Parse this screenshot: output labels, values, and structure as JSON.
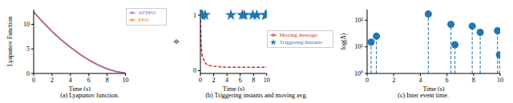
{
  "chart_data": [
    {
      "type": "line",
      "title": "(a) Lyapunov function.",
      "x_label": "Time (s)",
      "y_label": "Lyapunov Function",
      "xlim": [
        0,
        10
      ],
      "xticks": [
        0,
        2,
        4,
        6,
        8,
        10
      ],
      "ylim": [
        0,
        13
      ],
      "yticks": [
        0,
        5,
        10
      ],
      "grid": false,
      "legend": "upper right",
      "series": [
        {
          "name": "PPO",
          "type": "line",
          "color": "#ff7f0e",
          "line_style": "solid",
          "x": [
            0,
            1,
            2,
            3,
            4,
            5,
            6,
            7,
            8,
            9,
            10
          ],
          "values": [
            12.5,
            10.5,
            8.6,
            6.9,
            5.4,
            4.0,
            2.8,
            1.8,
            1.0,
            0.4,
            0.1
          ]
        },
        {
          "name": "ATPPO",
          "type": "line",
          "color": "#9467bd",
          "line_style": "solid",
          "x": [
            0,
            1,
            2,
            3,
            4,
            5,
            6,
            7,
            8,
            9,
            10
          ],
          "values": [
            12.5,
            10.4,
            8.5,
            6.8,
            5.3,
            3.9,
            2.7,
            1.7,
            0.9,
            0.35,
            0.1
          ]
        }
      ]
    },
    {
      "type": "scatter",
      "title": "(b) Triggering instants and moving avg.",
      "x_label": "Time (s)",
      "y_label": "Φ",
      "xlim": [
        0,
        10
      ],
      "xticks": [
        0,
        2,
        4,
        6,
        8,
        10
      ],
      "ylim": [
        -0.05,
        1.1
      ],
      "yticks": [
        0,
        1
      ],
      "grid": false,
      "legend": "right",
      "series": [
        {
          "name": "Triggering Instants",
          "type": "scatter",
          "color": "#1f77b4",
          "marker": "star",
          "x": [
            0.1,
            0.2,
            0.3,
            0.7,
            4.6,
            6.3,
            6.6,
            7.9,
            8.5,
            9.8,
            9.95
          ],
          "values": [
            1,
            1,
            1,
            1,
            1,
            1,
            1,
            1,
            1,
            1,
            1
          ]
        },
        {
          "name": "Moving Average",
          "type": "line",
          "color": "#d62728",
          "line_style": "dashed",
          "x": [
            0,
            0.1,
            0.2,
            0.3,
            0.5,
            0.8,
            1,
            1.5,
            2,
            3,
            4,
            5,
            6,
            7,
            8,
            9,
            10
          ],
          "values": [
            1,
            0.5,
            0.33,
            0.25,
            0.2,
            0.13,
            0.11,
            0.09,
            0.08,
            0.07,
            0.06,
            0.06,
            0.06,
            0.06,
            0.06,
            0.06,
            0.06
          ]
        }
      ]
    },
    {
      "type": "stem",
      "title": "(c) Inter event time.",
      "x_label": "Time (s)",
      "y_label": "log(Δ)",
      "xlim": [
        0,
        10
      ],
      "xticks": [
        0,
        2,
        4,
        6,
        8,
        10
      ],
      "ylim": [
        1,
        250
      ],
      "yticks": [
        {
          "value": 1,
          "label": "10⁰"
        },
        {
          "value": 10,
          "label": "10¹"
        },
        {
          "value": 100,
          "label": "10²"
        }
      ],
      "log": "y",
      "grid": false,
      "series": [
        {
          "type": "stem",
          "color": "#1f77b4",
          "line_style": "dashed",
          "marker": "circle",
          "x": [
            0.3,
            0.7,
            4.6,
            6.3,
            6.6,
            7.9,
            8.5,
            9.8,
            9.95
          ],
          "values": [
            15,
            25,
            170,
            70,
            12,
            60,
            35,
            40,
            5
          ]
        }
      ]
    }
  ]
}
